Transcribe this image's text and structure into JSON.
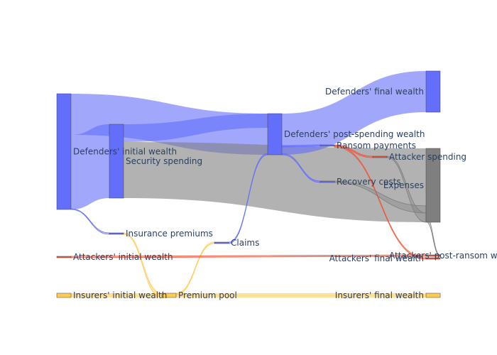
{
  "chart_data": {
    "type": "sankey",
    "title": "",
    "nodes": [
      {
        "id": "def_init",
        "label": "Defenders' initial wealth",
        "color": "#636efa"
      },
      {
        "id": "security",
        "label": "Security spending",
        "color": "#636efa"
      },
      {
        "id": "ins_prem",
        "label": "Insurance premiums",
        "color": "#636efa"
      },
      {
        "id": "att_init",
        "label": "Attackers' initial wealth",
        "color": "#ef553b"
      },
      {
        "id": "ins_init",
        "label": "Insurers' initial wealth",
        "color": "#fecb52"
      },
      {
        "id": "prem_pool",
        "label": "Premium pool",
        "color": "#fecb52"
      },
      {
        "id": "claims",
        "label": "Claims",
        "color": "#636efa"
      },
      {
        "id": "def_post",
        "label": "Defenders' post-spending wealth",
        "color": "#636efa"
      },
      {
        "id": "def_final",
        "label": "Defenders' final wealth",
        "color": "#636efa"
      },
      {
        "id": "ransom",
        "label": "Ransom payments",
        "color": "#636efa"
      },
      {
        "id": "recovery",
        "label": "Recovery costs",
        "color": "#636efa"
      },
      {
        "id": "att_spend",
        "label": "Attacker spending",
        "color": "#ef553b"
      },
      {
        "id": "att_post",
        "label": "Attackers' post-ransom wealth",
        "color": "#ef553b"
      },
      {
        "id": "att_final",
        "label": "Attackers' final wealth",
        "color": "#ef553b"
      },
      {
        "id": "expenses",
        "label": "Expenses",
        "color": "#7f7f7f"
      },
      {
        "id": "ins_final",
        "label": "Insurers' final wealth",
        "color": "#fecb52"
      }
    ],
    "links": [
      {
        "source": "def_init",
        "target": "def_post",
        "value": 80,
        "color": "rgba(99,110,250,0.6)"
      },
      {
        "source": "def_init",
        "target": "security",
        "value": 50,
        "color": "rgba(99,110,250,0.6)"
      },
      {
        "source": "def_init",
        "target": "ins_prem",
        "value": 0.5,
        "color": "rgba(99,110,250,0.6)"
      },
      {
        "source": "security",
        "target": "def_post",
        "value": 20,
        "color": "rgba(99,110,250,0.6)"
      },
      {
        "source": "security",
        "target": "expenses",
        "value": 50,
        "color": "rgba(127,127,127,0.6)"
      },
      {
        "source": "ins_prem",
        "target": "prem_pool",
        "value": 0.5,
        "color": "rgba(254,203,82,0.8)"
      },
      {
        "source": "ins_init",
        "target": "prem_pool",
        "value": 2,
        "color": "rgba(254,203,82,0.6)"
      },
      {
        "source": "prem_pool",
        "target": "claims",
        "value": 0.5,
        "color": "rgba(254,203,82,0.8)"
      },
      {
        "source": "prem_pool",
        "target": "ins_final",
        "value": 2,
        "color": "rgba(254,203,82,0.6)"
      },
      {
        "source": "claims",
        "target": "def_post",
        "value": 0.5,
        "color": "rgba(99,110,250,0.8)"
      },
      {
        "source": "def_post",
        "target": "def_final",
        "value": 28,
        "color": "rgba(99,110,250,0.6)"
      },
      {
        "source": "def_post",
        "target": "ransom",
        "value": 0.5,
        "color": "rgba(99,110,250,0.8)"
      },
      {
        "source": "def_post",
        "target": "recovery",
        "value": 0.5,
        "color": "rgba(99,110,250,0.8)"
      },
      {
        "source": "att_init",
        "target": "att_post",
        "value": 0.5,
        "color": "rgba(239,85,59,0.8)"
      },
      {
        "source": "ransom",
        "target": "att_spend",
        "value": 0.5,
        "color": "rgba(239,85,59,0.8)"
      },
      {
        "source": "ransom",
        "target": "att_final",
        "value": 0.5,
        "color": "rgba(239,85,59,0.8)"
      },
      {
        "source": "att_spend",
        "target": "expenses",
        "value": 0.5,
        "color": "rgba(127,127,127,0.6)"
      },
      {
        "source": "recovery",
        "target": "expenses",
        "value": 0.5,
        "color": "rgba(127,127,127,0.6)"
      },
      {
        "source": "att_post",
        "target": "expenses",
        "value": 0.5,
        "color": "rgba(127,127,127,0.6)"
      }
    ]
  }
}
